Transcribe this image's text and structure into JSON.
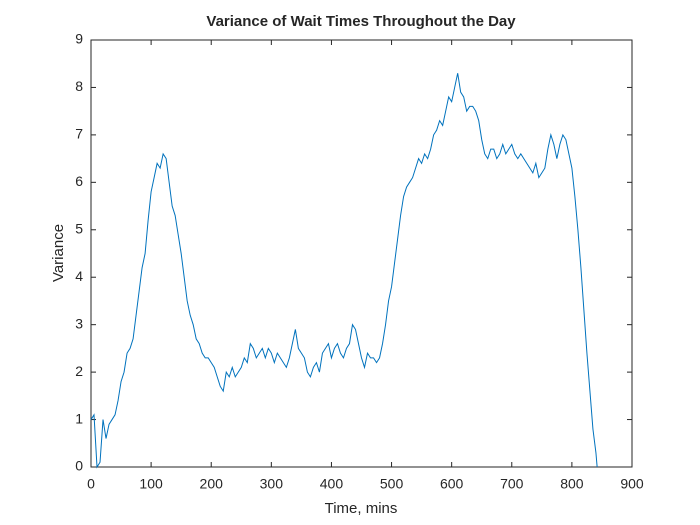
{
  "chart_data": {
    "type": "line",
    "title": "Variance of Wait Times Throughout the Day",
    "xlabel": "Time, mins",
    "ylabel": "Variance",
    "x": [
      0,
      5,
      10,
      15,
      20,
      25,
      30,
      35,
      40,
      45,
      50,
      55,
      60,
      65,
      70,
      75,
      80,
      85,
      90,
      95,
      100,
      105,
      110,
      115,
      120,
      125,
      130,
      135,
      140,
      145,
      150,
      155,
      160,
      165,
      170,
      175,
      180,
      185,
      190,
      195,
      200,
      205,
      210,
      215,
      220,
      225,
      230,
      235,
      240,
      245,
      250,
      255,
      260,
      265,
      270,
      275,
      280,
      285,
      290,
      295,
      300,
      305,
      310,
      315,
      320,
      325,
      330,
      335,
      340,
      345,
      350,
      355,
      360,
      365,
      370,
      375,
      380,
      385,
      390,
      395,
      400,
      405,
      410,
      415,
      420,
      425,
      430,
      435,
      440,
      445,
      450,
      455,
      460,
      465,
      470,
      475,
      480,
      485,
      490,
      495,
      500,
      505,
      510,
      515,
      520,
      525,
      530,
      535,
      540,
      545,
      550,
      555,
      560,
      565,
      570,
      575,
      580,
      585,
      590,
      595,
      600,
      605,
      610,
      615,
      620,
      625,
      630,
      635,
      640,
      645,
      650,
      655,
      660,
      665,
      670,
      675,
      680,
      685,
      690,
      695,
      700,
      705,
      710,
      715,
      720,
      725,
      730,
      735,
      740,
      745,
      750,
      755,
      760,
      765,
      770,
      775,
      780,
      785,
      790,
      795,
      800,
      805,
      810,
      815,
      820,
      825,
      830,
      835,
      840,
      842
    ],
    "series": [
      {
        "name": "Variance",
        "color": "#0072bd",
        "values": [
          1.0,
          1.1,
          0.0,
          0.1,
          1.0,
          0.6,
          0.9,
          1.0,
          1.1,
          1.4,
          1.8,
          2.0,
          2.4,
          2.5,
          2.7,
          3.2,
          3.7,
          4.2,
          4.5,
          5.2,
          5.8,
          6.1,
          6.4,
          6.3,
          6.6,
          6.5,
          6.0,
          5.5,
          5.3,
          4.9,
          4.5,
          4.0,
          3.5,
          3.2,
          3.0,
          2.7,
          2.6,
          2.4,
          2.3,
          2.3,
          2.2,
          2.1,
          1.9,
          1.7,
          1.6,
          2.0,
          1.9,
          2.1,
          1.9,
          2.0,
          2.1,
          2.3,
          2.2,
          2.6,
          2.5,
          2.3,
          2.4,
          2.5,
          2.3,
          2.5,
          2.4,
          2.2,
          2.4,
          2.3,
          2.2,
          2.1,
          2.3,
          2.6,
          2.9,
          2.5,
          2.4,
          2.3,
          2.0,
          1.9,
          2.1,
          2.2,
          2.0,
          2.4,
          2.5,
          2.6,
          2.3,
          2.5,
          2.6,
          2.4,
          2.3,
          2.5,
          2.6,
          3.0,
          2.9,
          2.6,
          2.3,
          2.1,
          2.4,
          2.3,
          2.3,
          2.2,
          2.3,
          2.6,
          3.0,
          3.5,
          3.8,
          4.3,
          4.8,
          5.3,
          5.7,
          5.9,
          6.0,
          6.1,
          6.3,
          6.5,
          6.4,
          6.6,
          6.5,
          6.7,
          7.0,
          7.1,
          7.3,
          7.2,
          7.5,
          7.8,
          7.7,
          8.0,
          8.3,
          7.9,
          7.8,
          7.5,
          7.6,
          7.6,
          7.5,
          7.3,
          6.9,
          6.6,
          6.5,
          6.7,
          6.7,
          6.5,
          6.6,
          6.8,
          6.6,
          6.7,
          6.8,
          6.6,
          6.5,
          6.6,
          6.5,
          6.4,
          6.3,
          6.2,
          6.4,
          6.1,
          6.2,
          6.3,
          6.7,
          7.0,
          6.8,
          6.5,
          6.8,
          7.0,
          6.9,
          6.6,
          6.3,
          5.7,
          5.0,
          4.2,
          3.3,
          2.4,
          1.6,
          0.8,
          0.3,
          0.0
        ]
      }
    ],
    "xlim": [
      0,
      900
    ],
    "xticks": [
      0,
      100,
      200,
      300,
      400,
      500,
      600,
      700,
      800,
      900
    ],
    "ylim": [
      0,
      9
    ],
    "yticks": [
      0,
      1,
      2,
      3,
      4,
      5,
      6,
      7,
      8,
      9
    ],
    "grid": false
  }
}
